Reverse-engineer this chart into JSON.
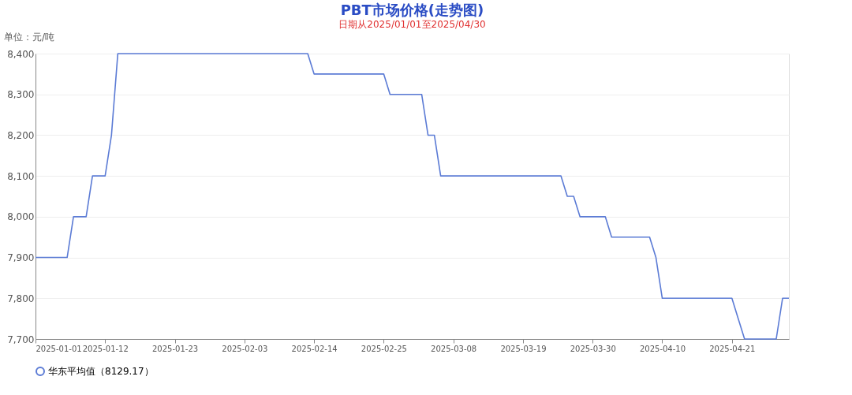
{
  "chart_data": {
    "type": "line",
    "title": "PBT市场价格(走势图)",
    "subtitle": "日期从2025/01/01至2025/04/30",
    "annotations": [
      "单位：元/吨"
    ],
    "x": [
      "2025-01-01",
      "2025-01-06",
      "2025-01-07",
      "2025-01-09",
      "2025-01-10",
      "2025-01-12",
      "2025-01-13",
      "2025-01-14",
      "2025-02-13",
      "2025-02-14",
      "2025-02-25",
      "2025-02-26",
      "2025-03-03",
      "2025-03-04",
      "2025-03-05",
      "2025-03-06",
      "2025-03-25",
      "2025-03-26",
      "2025-03-27",
      "2025-03-28",
      "2025-04-01",
      "2025-04-02",
      "2025-04-08",
      "2025-04-09",
      "2025-04-10",
      "2025-04-21",
      "2025-04-22",
      "2025-04-23",
      "2025-04-28",
      "2025-04-29",
      "2025-04-30"
    ],
    "series": [
      {
        "name": "华东平均值（8129.17）",
        "color": "#5b7bd5",
        "values": [
          7900,
          7900,
          8000,
          8000,
          8100,
          8100,
          8200,
          8400,
          8400,
          8350,
          8350,
          8300,
          8300,
          8200,
          8200,
          8100,
          8100,
          8050,
          8050,
          8000,
          8000,
          7950,
          7950,
          7900,
          7800,
          7800,
          7750,
          7700,
          7700,
          7800,
          7800
        ]
      }
    ],
    "xlim": [
      "2025-01-01",
      "2025-04-30"
    ],
    "xticks": [
      "2025-01-01",
      "2025-01-12",
      "2025-01-23",
      "2025-02-03",
      "2025-02-14",
      "2025-02-25",
      "2025-03-08",
      "2025-03-19",
      "2025-03-30",
      "2025-04-10",
      "2025-04-21"
    ],
    "ylim": [
      7700,
      8400
    ],
    "yticks": [
      {
        "value": 7700,
        "label": "7,700"
      },
      {
        "value": 7800,
        "label": "7,800"
      },
      {
        "value": 7900,
        "label": "7,900"
      },
      {
        "value": 8000,
        "label": "8,000"
      },
      {
        "value": 8100,
        "label": "8,100"
      },
      {
        "value": 8200,
        "label": "8,200"
      },
      {
        "value": 8300,
        "label": "8,300"
      },
      {
        "value": 8400,
        "label": "8,400"
      }
    ],
    "grid": "y",
    "legend": "bottom",
    "marker": "none",
    "line_style": "solid"
  }
}
